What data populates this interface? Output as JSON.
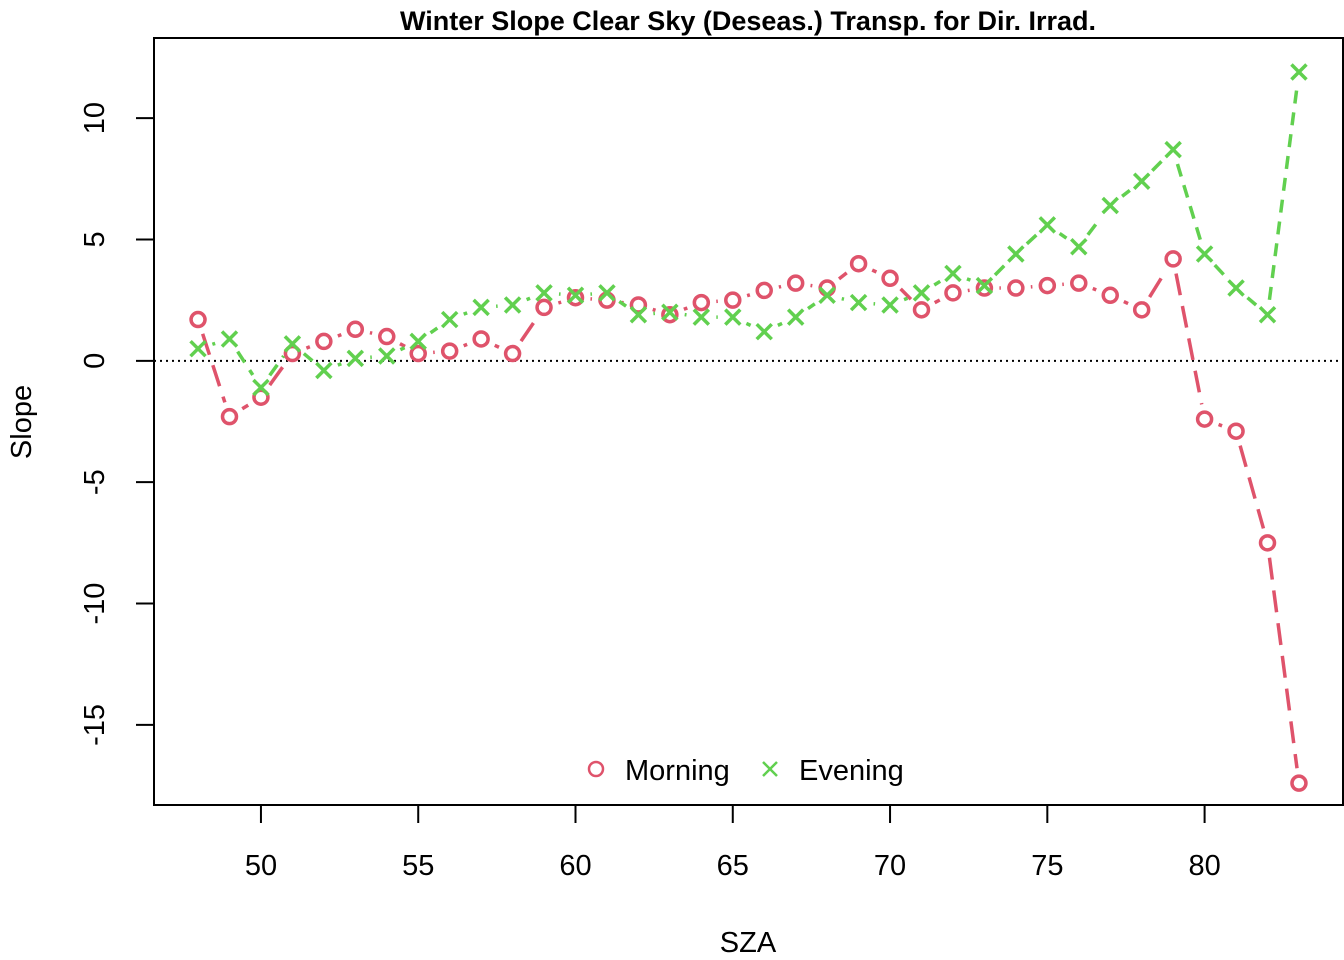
{
  "chart_data": {
    "type": "line",
    "title": "Winter Slope Clear Sky (Deseas.) Transp. for Dir. Irrad.",
    "xlabel": "SZA",
    "ylabel": "Slope",
    "xlim": [
      46.6,
      84.4
    ],
    "ylim": [
      -18.3,
      13.3
    ],
    "xticks": [
      50,
      55,
      60,
      65,
      70,
      75,
      80
    ],
    "yticks": [
      -15,
      -10,
      -5,
      0,
      5,
      10
    ],
    "reference_line": {
      "y": 0,
      "style": "dotted"
    },
    "grid": false,
    "legend_position": "bottom-center",
    "series": [
      {
        "name": "Morning",
        "color": "#DF536B",
        "marker": "circle",
        "x": [
          48,
          49,
          50,
          51,
          52,
          53,
          54,
          55,
          56,
          57,
          58,
          59,
          60,
          61,
          62,
          63,
          64,
          65,
          66,
          67,
          68,
          69,
          70,
          71,
          72,
          73,
          74,
          75,
          76,
          77,
          78,
          79,
          80,
          81,
          82,
          83
        ],
        "y": [
          1.7,
          -2.3,
          -1.5,
          0.3,
          0.8,
          1.3,
          1.0,
          0.3,
          0.4,
          0.9,
          0.3,
          2.2,
          2.6,
          2.5,
          2.3,
          1.9,
          2.4,
          2.5,
          2.9,
          3.2,
          3.0,
          4.0,
          3.4,
          2.1,
          2.8,
          3.0,
          3.0,
          3.1,
          3.2,
          2.7,
          2.1,
          4.2,
          -2.4,
          -2.9,
          -7.5,
          -17.4
        ]
      },
      {
        "name": "Evening",
        "color": "#61D04F",
        "marker": "cross",
        "x": [
          48,
          49,
          50,
          51,
          52,
          53,
          54,
          55,
          56,
          57,
          58,
          59,
          60,
          61,
          62,
          63,
          64,
          65,
          66,
          67,
          68,
          69,
          70,
          71,
          72,
          73,
          74,
          75,
          76,
          77,
          78,
          79,
          80,
          81,
          82,
          83
        ],
        "y": [
          0.5,
          0.9,
          -1.1,
          0.7,
          -0.4,
          0.1,
          0.2,
          0.8,
          1.7,
          2.2,
          2.3,
          2.8,
          2.7,
          2.8,
          1.9,
          2.0,
          1.8,
          1.8,
          1.2,
          1.8,
          2.7,
          2.4,
          2.3,
          2.8,
          3.6,
          3.1,
          4.4,
          5.6,
          4.7,
          6.4,
          7.4,
          8.7,
          4.4,
          3.0,
          1.9,
          11.9
        ]
      }
    ]
  }
}
